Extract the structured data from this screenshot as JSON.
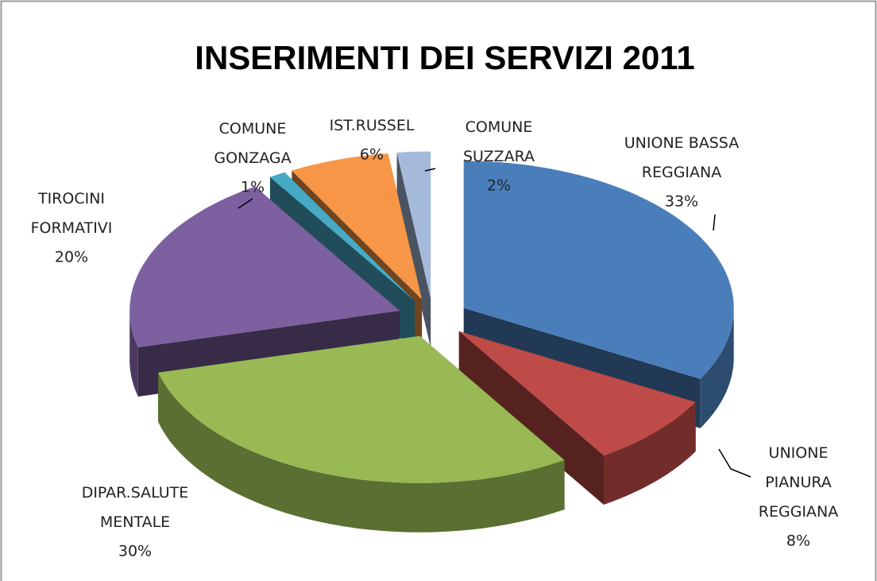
{
  "chart_data": {
    "type": "pie",
    "title": "INSERIMENTI DEI SERVIZI 2011",
    "categories": [
      "UNIONE BASSA REGGIANA",
      "UNIONE PIANURA REGGIANA",
      "DIPAR.SALUTE MENTALE",
      "TIROCINI FORMATIVI",
      "COMUNE GONZAGA",
      "IST.RUSSEL",
      "COMUNE SUZZARA"
    ],
    "values": [
      33,
      8,
      30,
      20,
      1,
      6,
      2
    ],
    "value_labels": [
      "33%",
      "8%",
      "30%",
      "20%",
      "1%",
      "6%",
      "2%"
    ],
    "colors": [
      "#4a7ebb",
      "#be4b48",
      "#98b954",
      "#7d60a0",
      "#46aac5",
      "#f79646",
      "#a5b9da"
    ]
  }
}
